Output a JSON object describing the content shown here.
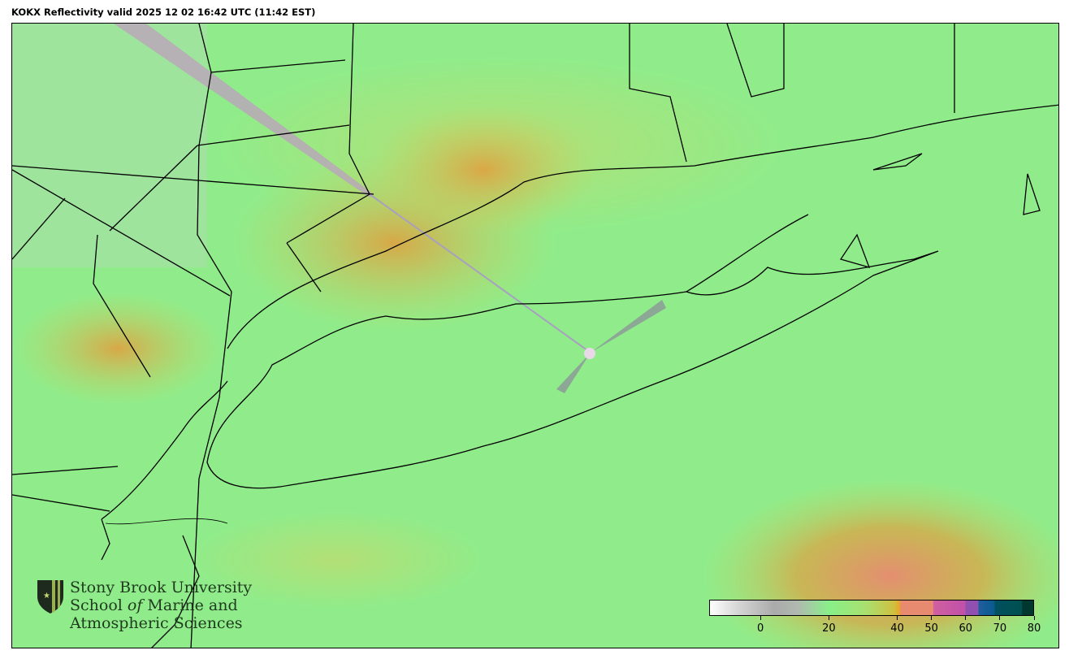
{
  "title": "KOKX Reflectivity valid 2025 12 02 16:42 UTC (11:42 EST)",
  "radar_site": "KOKX",
  "logo": {
    "line1": "Stony Brook University",
    "line2_pre": "School ",
    "line2_of": "of",
    "line2_post": " Marine and",
    "line3": "Atmospheric Sciences"
  },
  "colorbar": {
    "range": [
      -15,
      80
    ],
    "ticks": [
      "0",
      "20",
      "40",
      "50",
      "60",
      "70",
      "80"
    ],
    "colors": {
      "low": "#ffffff",
      "gray": "#aaaaaa",
      "green": "#88f088",
      "yellow": "#d0c040",
      "salmon": "#e88a70",
      "magenta": "#c050a8",
      "purple": "#9050b0",
      "blue": "#0a5a90",
      "teal": "#005050"
    }
  },
  "background_color": "#90ec8a"
}
